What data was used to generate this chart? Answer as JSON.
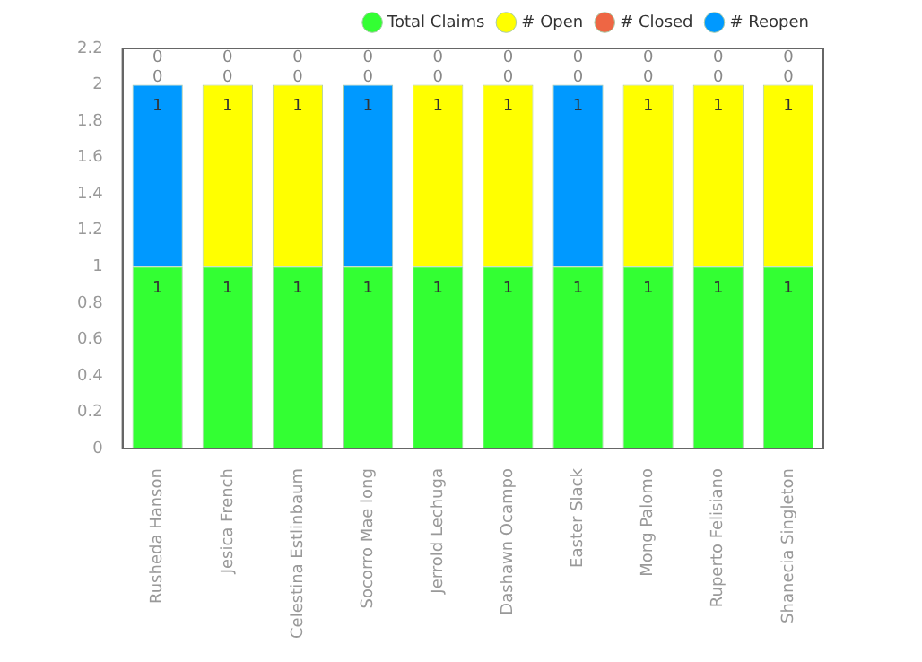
{
  "chart_data": {
    "type": "bar",
    "stacked": true,
    "categories": [
      "Rusheda Hanson",
      "Jesica French",
      "Celestina Estlinbaum",
      "Socorro Mae long",
      "Jerrold Lechuga",
      "Dashawn Ocampo",
      "Easter Slack",
      "Mong Palomo",
      "Ruperto Felisiano",
      "Shanecia Singleton"
    ],
    "series": [
      {
        "name": "Total Claims",
        "color": "#33ff33",
        "values": [
          1,
          1,
          1,
          1,
          1,
          1,
          1,
          1,
          1,
          1
        ]
      },
      {
        "name": "# Open",
        "color": "#ffff00",
        "values": [
          0,
          1,
          1,
          0,
          1,
          1,
          0,
          1,
          1,
          1
        ]
      },
      {
        "name": "# Closed",
        "color": "#ee6644",
        "values": [
          0,
          0,
          0,
          0,
          0,
          0,
          0,
          0,
          0,
          0
        ]
      },
      {
        "name": "# Reopen",
        "color": "#0099ff",
        "values": [
          1,
          0,
          0,
          1,
          0,
          0,
          1,
          0,
          0,
          0
        ]
      }
    ],
    "ylim": [
      0,
      2.2
    ],
    "yticks": [
      0,
      0.2,
      0.4,
      0.6,
      0.8,
      1,
      1.2,
      1.4,
      1.6,
      1.8,
      2,
      2.2
    ],
    "grid": false,
    "legend": "top",
    "data_labels": true
  }
}
